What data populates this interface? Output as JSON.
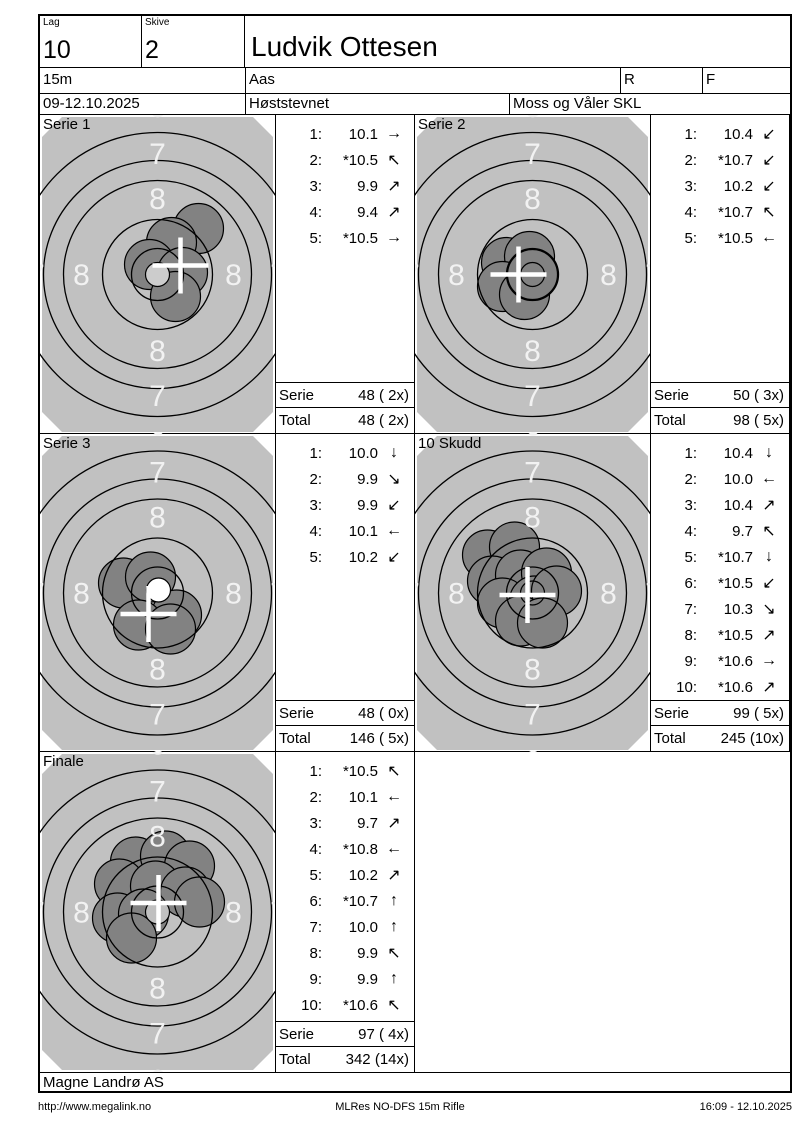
{
  "header": {
    "lag_label": "Lag",
    "lag_value": "10",
    "skive_label": "Skive",
    "skive_value": "2",
    "shooter_name": "Ludvik Ottesen",
    "distance": "15m",
    "club": "Aas",
    "r_label": "R",
    "f_label": "F",
    "date_range": "09-12.10.2025",
    "event_name": "Høststevnet",
    "organizer": "Moss og Våler SKL"
  },
  "panels": [
    {
      "id": "serie-1",
      "title": "Serie 1",
      "shots": [
        {
          "n": "1:",
          "v": "10.1",
          "a": "→"
        },
        {
          "n": "2:",
          "v": "*10.5",
          "a": "↖"
        },
        {
          "n": "3:",
          "v": "9.9",
          "a": "↗"
        },
        {
          "n": "4:",
          "v": "9.4",
          "a": "↗"
        },
        {
          "n": "5:",
          "v": "*10.5",
          "a": "→"
        }
      ],
      "serie_label": "Serie",
      "serie_value": "48 ( 2x)",
      "total_label": "Total",
      "total_value": "48 ( 2x)",
      "target": {
        "cross": [
          23,
          -9
        ],
        "dot": [
          0,
          0
        ],
        "dot_fill": "#cccccc",
        "hits": [
          [
            41,
            -46
          ],
          [
            14,
            -32
          ],
          [
            -8,
            -10
          ],
          [
            25,
            -2
          ],
          [
            18,
            22
          ]
        ]
      }
    },
    {
      "id": "serie-2",
      "title": "Serie 2",
      "shots": [
        {
          "n": "1:",
          "v": "10.4",
          "a": "↙"
        },
        {
          "n": "2:",
          "v": "*10.7",
          "a": "↙"
        },
        {
          "n": "3:",
          "v": "10.2",
          "a": "↙"
        },
        {
          "n": "4:",
          "v": "*10.7",
          "a": "↖"
        },
        {
          "n": "5:",
          "v": "*10.5",
          "a": "←"
        }
      ],
      "serie_label": "Serie",
      "serie_value": "50 ( 3x)",
      "total_label": "Total",
      "total_value": "98 ( 5x)",
      "target": {
        "cross": [
          -14,
          0
        ],
        "dot": [
          0,
          0
        ],
        "dot_fill": "none",
        "hits": [
          [
            -26,
            -12
          ],
          [
            -3,
            -18
          ],
          [
            -30,
            12
          ],
          [
            -8,
            20
          ],
          [
            0,
            0
          ]
        ]
      }
    },
    {
      "id": "serie-3",
      "title": "Serie 3",
      "shots": [
        {
          "n": "1:",
          "v": "10.0",
          "a": "↓"
        },
        {
          "n": "2:",
          "v": "9.9",
          "a": "↘"
        },
        {
          "n": "3:",
          "v": "9.9",
          "a": "↙"
        },
        {
          "n": "4:",
          "v": "10.1",
          "a": "←"
        },
        {
          "n": "5:",
          "v": "10.2",
          "a": "↙"
        }
      ],
      "serie_label": "Serie",
      "serie_value": "48 ( 0x)",
      "total_label": "Total",
      "total_value": "146 ( 5x)",
      "target": {
        "cross": [
          -9,
          21
        ],
        "dot": [
          1,
          -3
        ],
        "dot_fill": "#ffffff",
        "hits": [
          [
            -34,
            -10
          ],
          [
            -7,
            -16
          ],
          [
            19,
            22
          ],
          [
            -19,
            32
          ],
          [
            13,
            36
          ]
        ]
      }
    },
    {
      "id": "10-skudd",
      "title": "10 Skudd",
      "shots": [
        {
          "n": "1:",
          "v": "10.4",
          "a": "↓"
        },
        {
          "n": "2:",
          "v": "10.0",
          "a": "←"
        },
        {
          "n": "3:",
          "v": "10.4",
          "a": "↗"
        },
        {
          "n": "4:",
          "v": "9.7",
          "a": "↖"
        },
        {
          "n": "5:",
          "v": "*10.7",
          "a": "↓"
        },
        {
          "n": "6:",
          "v": "*10.5",
          "a": "↙"
        },
        {
          "n": "7:",
          "v": "10.3",
          "a": "↘"
        },
        {
          "n": "8:",
          "v": "*10.5",
          "a": "↗"
        },
        {
          "n": "9:",
          "v": "*10.6",
          "a": "→"
        },
        {
          "n": "10:",
          "v": "*10.6",
          "a": "↗"
        }
      ],
      "serie_label": "Serie",
      "serie_value": "99 ( 5x)",
      "total_label": "Total",
      "total_value": "245 (10x)",
      "target": {
        "cross": [
          -5,
          2
        ],
        "dot": [
          0,
          0
        ],
        "dot_fill": "none",
        "hits": [
          [
            -45,
            -38
          ],
          [
            -18,
            -46
          ],
          [
            -40,
            -12
          ],
          [
            -12,
            -18
          ],
          [
            14,
            -20
          ],
          [
            -30,
            10
          ],
          [
            2,
            8
          ],
          [
            24,
            -2
          ],
          [
            -12,
            28
          ],
          [
            10,
            30
          ]
        ]
      }
    },
    {
      "id": "finale",
      "title": "Finale",
      "shots": [
        {
          "n": "1:",
          "v": "*10.5",
          "a": "↖"
        },
        {
          "n": "2:",
          "v": "10.1",
          "a": "←"
        },
        {
          "n": "3:",
          "v": "9.7",
          "a": "↗"
        },
        {
          "n": "4:",
          "v": "*10.8",
          "a": "←"
        },
        {
          "n": "5:",
          "v": "10.2",
          "a": "↗"
        },
        {
          "n": "6:",
          "v": "*10.7",
          "a": "↑"
        },
        {
          "n": "7:",
          "v": "10.0",
          "a": "↑"
        },
        {
          "n": "8:",
          "v": "9.9",
          "a": "↖"
        },
        {
          "n": "9:",
          "v": "9.9",
          "a": "↑"
        },
        {
          "n": "10:",
          "v": "*10.6",
          "a": "↖"
        }
      ],
      "serie_label": "Serie",
      "serie_value": "97 ( 4x)",
      "total_label": "Total",
      "total_value": "342 (14x)",
      "target": {
        "cross": [
          1,
          -9
        ],
        "dot": [
          0,
          0
        ],
        "dot_fill": "#c0c0c0",
        "hits": [
          [
            -22,
            -50
          ],
          [
            8,
            -56
          ],
          [
            32,
            -46
          ],
          [
            -38,
            -28
          ],
          [
            -2,
            -26
          ],
          [
            28,
            -20
          ],
          [
            42,
            -10
          ],
          [
            -40,
            6
          ],
          [
            -14,
            2
          ],
          [
            -26,
            26
          ]
        ]
      }
    }
  ],
  "target_style": {
    "bg": "#c1c1c1",
    "hit_fill": "#828282",
    "hit_r": 25,
    "ring_radii": [
      142,
      114,
      94,
      55,
      26
    ],
    "dot_r": 12,
    "labels": [
      {
        "text": "6",
        "dist": 168
      },
      {
        "text": "7",
        "dist": 121
      },
      {
        "text": "8",
        "dist": 76
      }
    ],
    "label_color": "#f2f2f2",
    "label_size": 30,
    "cross_color": "#ffffff",
    "cross_half": 28,
    "cross_stroke": 4.5,
    "ring_stroke": 1.3,
    "corner_cut": 20,
    "inset": 2
  },
  "footer": {
    "vendor": "Magne Landrø AS",
    "url": "http://www.megalink.no",
    "doc": "MLRes NO-DFS 15m Rifle",
    "timestamp": "16:09 - 12.10.2025"
  }
}
